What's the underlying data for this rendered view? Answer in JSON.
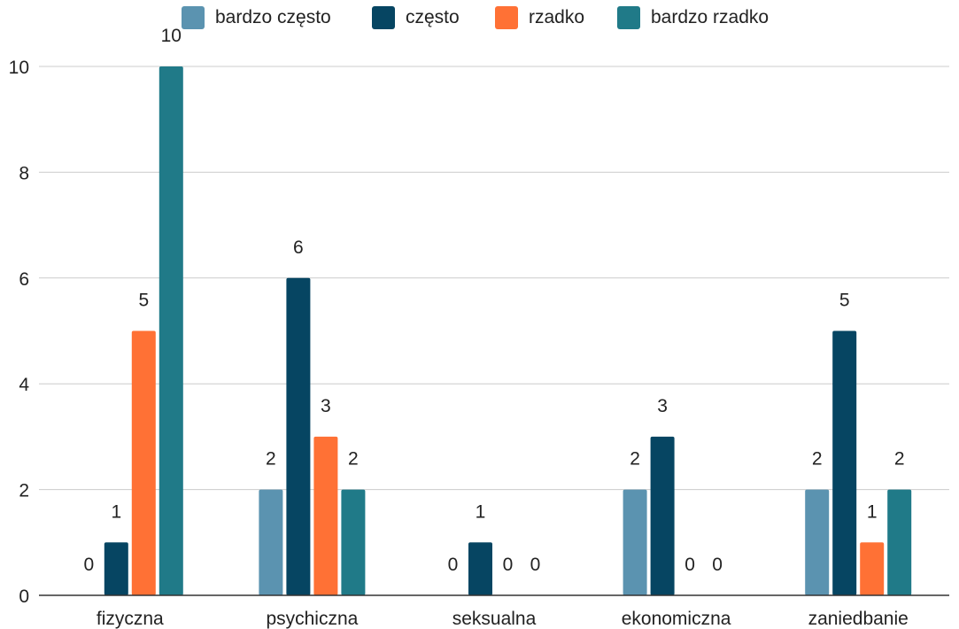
{
  "chart_data": {
    "type": "bar",
    "title": "",
    "xlabel": "",
    "ylabel": "",
    "categories": [
      "fizyczna",
      "psychiczna",
      "seksualna",
      "ekonomiczna",
      "zaniedbanie"
    ],
    "series": [
      {
        "name": "bardzo często",
        "color": "#5b93b0",
        "values": [
          0,
          2,
          0,
          2,
          2
        ]
      },
      {
        "name": "często",
        "color": "#064562",
        "values": [
          1,
          6,
          1,
          3,
          5
        ]
      },
      {
        "name": "rzadko",
        "color": "#ff7135",
        "values": [
          5,
          3,
          0,
          0,
          1
        ]
      },
      {
        "name": "bardzo rzadko",
        "color": "#207a88",
        "values": [
          10,
          2,
          0,
          0,
          2
        ]
      }
    ],
    "ylim": [
      0,
      10
    ],
    "yticks": [
      "0",
      "2",
      "4",
      "6",
      "8",
      "10"
    ],
    "grid": true,
    "legend_position": "top"
  }
}
